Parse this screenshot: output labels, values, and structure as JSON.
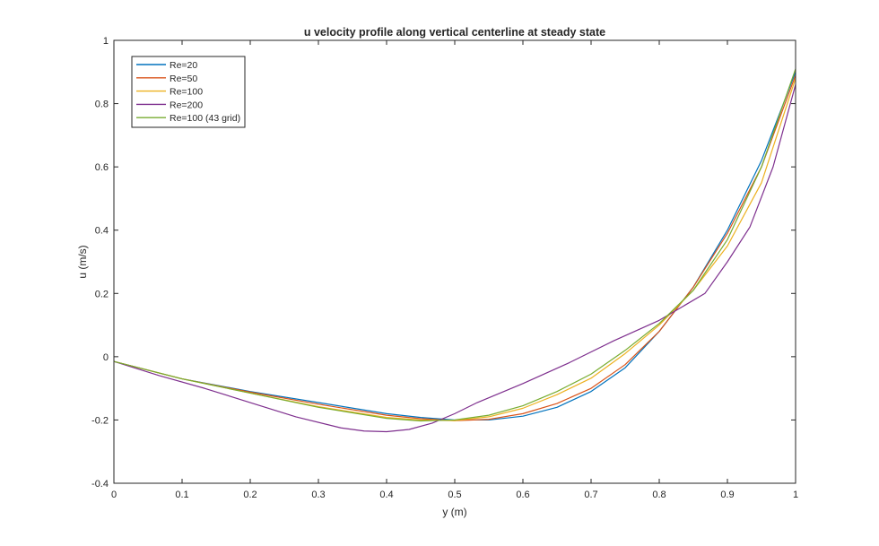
{
  "chart_data": {
    "type": "line",
    "title": "u velocity profile along vertical centerline at steady state",
    "xlabel": "y (m)",
    "ylabel": "u (m/s)",
    "xlim": [
      0,
      1
    ],
    "ylim": [
      -0.4,
      1
    ],
    "xticks": [
      "0",
      "0.1",
      "0.2",
      "0.3",
      "0.4",
      "0.5",
      "0.6",
      "0.7",
      "0.8",
      "0.9",
      "1"
    ],
    "yticks": [
      "-0.4",
      "-0.2",
      "0",
      "0.2",
      "0.4",
      "0.6",
      "0.8",
      "1"
    ],
    "grid": false,
    "legend_position": "top-left",
    "series": [
      {
        "name": "Re=20",
        "color": "#0072BD",
        "x": [
          0,
          0.1,
          0.2,
          0.3,
          0.4,
          0.45,
          0.5,
          0.55,
          0.6,
          0.65,
          0.7,
          0.75,
          0.8,
          0.85,
          0.9,
          0.95,
          1.0
        ],
        "y": [
          -0.015,
          -0.07,
          -0.11,
          -0.145,
          -0.18,
          -0.192,
          -0.2,
          -0.2,
          -0.188,
          -0.16,
          -0.11,
          -0.035,
          0.08,
          0.22,
          0.4,
          0.62,
          0.9
        ]
      },
      {
        "name": "Re=50",
        "color": "#D95319",
        "x": [
          0,
          0.1,
          0.2,
          0.3,
          0.4,
          0.45,
          0.5,
          0.55,
          0.6,
          0.65,
          0.7,
          0.75,
          0.8,
          0.85,
          0.9,
          0.95,
          1.0
        ],
        "y": [
          -0.015,
          -0.07,
          -0.112,
          -0.15,
          -0.185,
          -0.196,
          -0.202,
          -0.198,
          -0.18,
          -0.148,
          -0.1,
          -0.025,
          0.08,
          0.22,
          0.39,
          0.6,
          0.89
        ]
      },
      {
        "name": "Re=100",
        "color": "#EDB120",
        "x": [
          0,
          0.1,
          0.2,
          0.3,
          0.4,
          0.45,
          0.5,
          0.55,
          0.6,
          0.65,
          0.7,
          0.75,
          0.8,
          0.85,
          0.9,
          0.95,
          1.0
        ],
        "y": [
          -0.015,
          -0.07,
          -0.115,
          -0.158,
          -0.192,
          -0.2,
          -0.202,
          -0.19,
          -0.163,
          -0.12,
          -0.068,
          0.01,
          0.1,
          0.21,
          0.35,
          0.55,
          0.88
        ]
      },
      {
        "name": "Re=200",
        "color": "#7E2F8E",
        "x": [
          0,
          0.067,
          0.133,
          0.2,
          0.267,
          0.333,
          0.367,
          0.4,
          0.433,
          0.467,
          0.5,
          0.533,
          0.6,
          0.667,
          0.733,
          0.8,
          0.867,
          0.9,
          0.933,
          0.967,
          1.0
        ],
        "y": [
          -0.015,
          -0.06,
          -0.1,
          -0.145,
          -0.19,
          -0.225,
          -0.235,
          -0.237,
          -0.23,
          -0.21,
          -0.18,
          -0.145,
          -0.085,
          -0.02,
          0.05,
          0.115,
          0.2,
          0.3,
          0.41,
          0.6,
          0.86
        ]
      },
      {
        "name": "Re=100 (43 grid)",
        "color": "#77AC30",
        "x": [
          0,
          0.1,
          0.2,
          0.3,
          0.4,
          0.45,
          0.5,
          0.55,
          0.6,
          0.65,
          0.7,
          0.75,
          0.8,
          0.85,
          0.9,
          0.95,
          1.0
        ],
        "y": [
          -0.015,
          -0.07,
          -0.115,
          -0.16,
          -0.195,
          -0.203,
          -0.2,
          -0.185,
          -0.155,
          -0.11,
          -0.055,
          0.02,
          0.105,
          0.21,
          0.37,
          0.6,
          0.91
        ]
      }
    ]
  }
}
